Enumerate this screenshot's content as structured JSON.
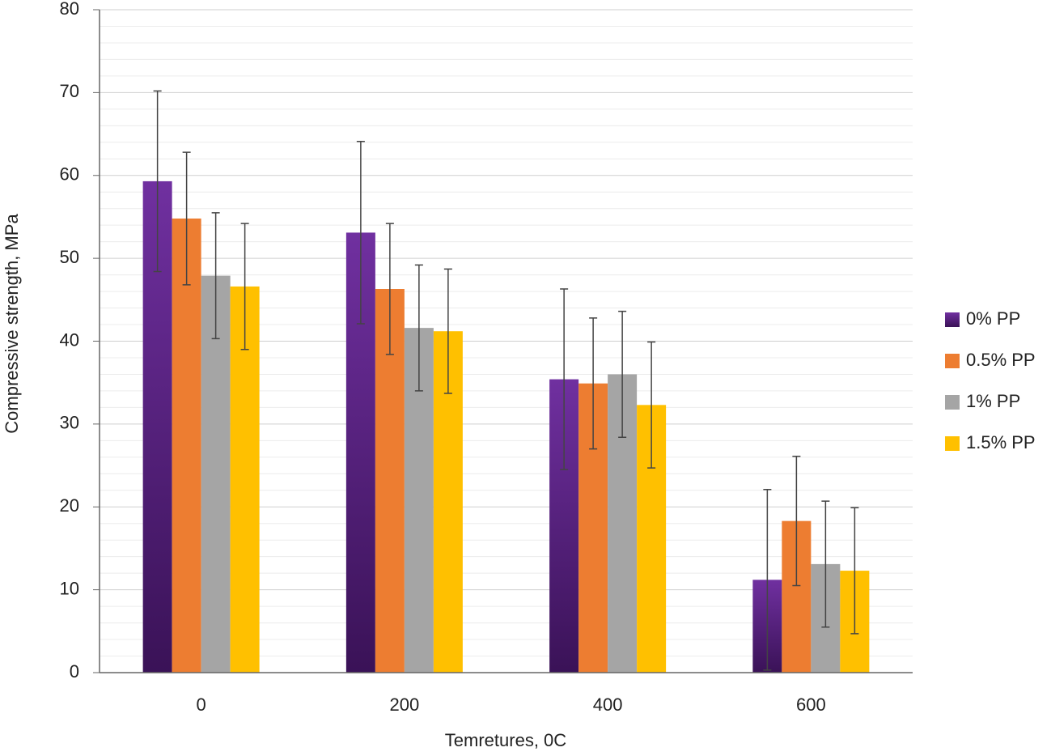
{
  "chart_data": {
    "type": "bar",
    "x_label": "Temretures, 0C",
    "y_label": "Compressive strength, MPa",
    "categories": [
      "0",
      "200",
      "400",
      "600"
    ],
    "series": [
      {
        "name": "0% PP",
        "color": "#7030a0",
        "gradient_to": "#3a1257",
        "values": [
          59.3,
          53.1,
          35.4,
          11.2
        ],
        "errors": [
          10.9,
          11.0,
          10.9,
          10.9
        ]
      },
      {
        "name": "0.5% PP",
        "color": "#ed7d31",
        "values": [
          54.8,
          46.3,
          34.9,
          18.3
        ],
        "errors": [
          8.0,
          7.9,
          7.9,
          7.8
        ]
      },
      {
        "name": "1% PP",
        "color": "#a5a5a5",
        "values": [
          47.9,
          41.6,
          36.0,
          13.1
        ],
        "errors": [
          7.6,
          7.6,
          7.6,
          7.6
        ]
      },
      {
        "name": "1.5% PP",
        "color": "#ffc000",
        "values": [
          46.6,
          41.2,
          32.3,
          12.3
        ],
        "errors": [
          7.6,
          7.5,
          7.6,
          7.6
        ]
      }
    ],
    "ylim": [
      0,
      80
    ],
    "yticks": [
      0,
      10,
      20,
      30,
      40,
      50,
      60,
      70,
      80
    ],
    "yminorticks": [
      2,
      4,
      6,
      8,
      12,
      14,
      16,
      18,
      22,
      24,
      26,
      28,
      32,
      34,
      36,
      38,
      42,
      44,
      46,
      48,
      52,
      54,
      56,
      58,
      62,
      64,
      66,
      68,
      72,
      74,
      76,
      78
    ],
    "grid": true,
    "legend": "right"
  }
}
